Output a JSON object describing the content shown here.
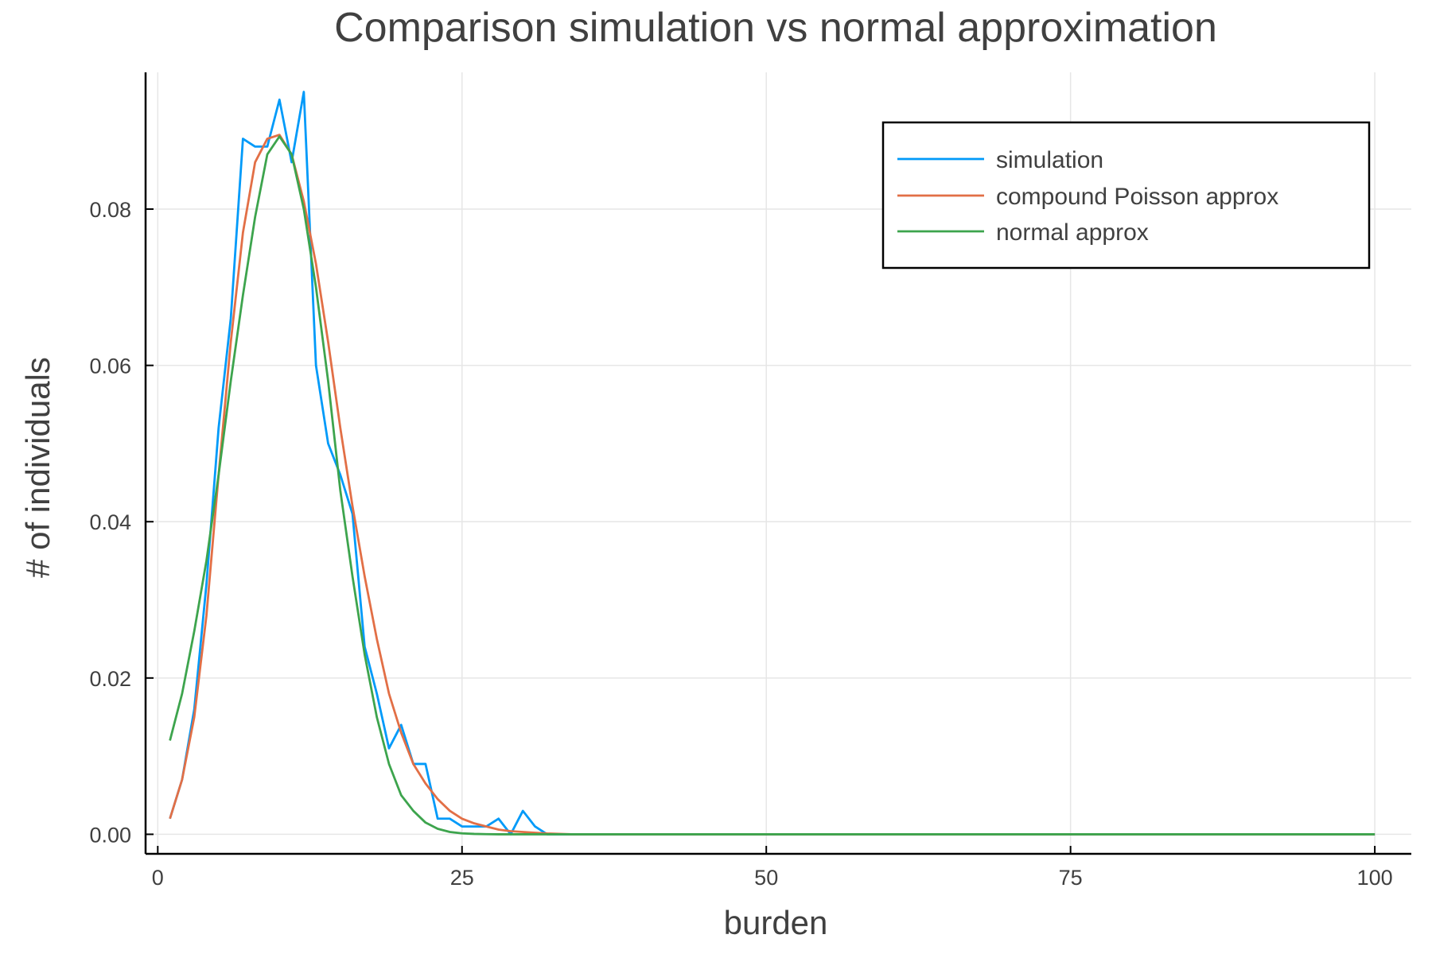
{
  "chart_data": {
    "type": "line",
    "title": "Comparison simulation vs normal approximation",
    "xlabel": "burden",
    "ylabel": "# of individuals",
    "xlim": [
      -1,
      103
    ],
    "ylim": [
      -0.0025,
      0.0975
    ],
    "xticks": [
      0,
      25,
      50,
      75,
      100
    ],
    "xtick_labels": [
      "0",
      "25",
      "50",
      "75",
      "100"
    ],
    "yticks": [
      0.0,
      0.02,
      0.04,
      0.06,
      0.08
    ],
    "ytick_labels": [
      "0.00",
      "0.02",
      "0.04",
      "0.06",
      "0.08"
    ],
    "grid": true,
    "legend_position": "top-right",
    "series": [
      {
        "name": "simulation",
        "color": "#009af9",
        "x": [
          1,
          2,
          3,
          4,
          5,
          6,
          7,
          8,
          9,
          10,
          11,
          12,
          13,
          14,
          15,
          16,
          17,
          18,
          19,
          20,
          21,
          22,
          23,
          24,
          25,
          26,
          27,
          28,
          29,
          30,
          31,
          32,
          33,
          34,
          35,
          40,
          50,
          60,
          70,
          80,
          90,
          100
        ],
        "y": [
          0.002,
          0.007,
          0.016,
          0.032,
          0.052,
          0.066,
          0.089,
          0.088,
          0.088,
          0.094,
          0.086,
          0.095,
          0.06,
          0.05,
          0.046,
          0.041,
          0.024,
          0.018,
          0.011,
          0.014,
          0.009,
          0.009,
          0.002,
          0.002,
          0.001,
          0.001,
          0.001,
          0.002,
          0.0,
          0.003,
          0.001,
          0.0,
          0.0,
          0.0,
          0.0,
          0.0,
          0.0,
          0.0,
          0.0,
          0.0,
          0.0,
          0.0
        ]
      },
      {
        "name": "compound Poisson approx",
        "color": "#e26f46",
        "x": [
          1,
          2,
          3,
          4,
          5,
          6,
          7,
          8,
          9,
          10,
          11,
          12,
          13,
          14,
          15,
          16,
          17,
          18,
          19,
          20,
          21,
          22,
          23,
          24,
          25,
          26,
          27,
          28,
          29,
          30,
          31,
          32,
          33,
          34,
          35,
          40,
          50,
          60,
          70,
          80,
          90,
          100
        ],
        "y": [
          0.002,
          0.007,
          0.015,
          0.028,
          0.046,
          0.063,
          0.077,
          0.086,
          0.089,
          0.0895,
          0.087,
          0.081,
          0.073,
          0.063,
          0.052,
          0.042,
          0.033,
          0.025,
          0.018,
          0.013,
          0.009,
          0.0065,
          0.0045,
          0.003,
          0.002,
          0.0014,
          0.001,
          0.0006,
          0.0004,
          0.0003,
          0.0002,
          0.0001,
          5e-05,
          0.0,
          0.0,
          0.0,
          0.0,
          0.0,
          0.0,
          0.0,
          0.0,
          0.0
        ]
      },
      {
        "name": "normal approx",
        "color": "#3da44d",
        "x": [
          1,
          2,
          3,
          4,
          5,
          6,
          7,
          8,
          9,
          10,
          11,
          12,
          13,
          14,
          15,
          16,
          17,
          18,
          19,
          20,
          21,
          22,
          23,
          24,
          25,
          26,
          27,
          28,
          29,
          30,
          31,
          32,
          33,
          34,
          35,
          40,
          50,
          60,
          70,
          80,
          90,
          100
        ],
        "y": [
          0.012,
          0.018,
          0.026,
          0.035,
          0.046,
          0.058,
          0.069,
          0.079,
          0.087,
          0.0893,
          0.087,
          0.08,
          0.07,
          0.058,
          0.044,
          0.033,
          0.023,
          0.015,
          0.009,
          0.005,
          0.003,
          0.0015,
          0.0007,
          0.0003,
          0.00012,
          5e-05,
          2e-05,
          0.0,
          0.0,
          0.0,
          0.0,
          0.0,
          0.0,
          0.0,
          0.0,
          0.0,
          0.0,
          0.0,
          0.0,
          0.0,
          0.0,
          0.0
        ]
      }
    ]
  }
}
